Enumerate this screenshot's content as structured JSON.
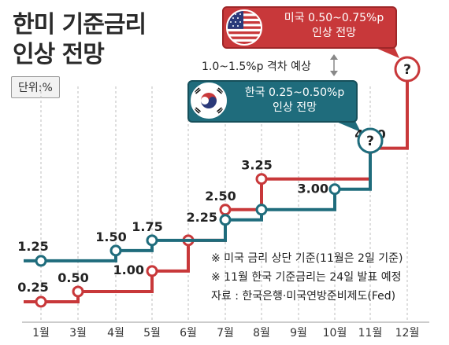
{
  "title_line1": "한미 기준금리",
  "title_line2": "인상 전망",
  "unit_label": "단위:%",
  "gap_note": "1.0~1.5%p 격차 예상",
  "us_callout": {
    "line1": "미국 0.50~0.75%p",
    "line2": "인상 전망"
  },
  "kr_callout": {
    "line1": "한국 0.25~0.50%p",
    "line2": "인상 전망"
  },
  "notes": [
    "※ 미국 금리 상단 기준(11월은 2일 기준)",
    "※ 11월 한국 기준금리는 24일 발표 예정",
    "자료 : 한국은행·미국연방준비제도(Fed)"
  ],
  "colors": {
    "us": "#c8383a",
    "kr": "#1f6c7c",
    "grid": "#bdbdbd"
  },
  "icons": {
    "us_flag": "us-flag-icon",
    "kr_flag": "kr-flag-icon"
  },
  "chart_data": {
    "type": "line",
    "step": true,
    "categories": [
      "1월",
      "3월",
      "4월",
      "5월",
      "6월",
      "7월",
      "8월",
      "9월",
      "10월",
      "11월",
      "12월"
    ],
    "series": [
      {
        "name": "미국",
        "color": "#c8383a",
        "points": [
          [
            0,
            0.25
          ],
          [
            1,
            0.5
          ],
          [
            3,
            1.0
          ],
          [
            4,
            1.75
          ],
          [
            5,
            2.5
          ],
          [
            6,
            3.25
          ],
          [
            9,
            4.0
          ],
          [
            10,
            null
          ]
        ],
        "labels": [
          [
            0,
            "0.25"
          ],
          [
            1,
            "0.50"
          ],
          [
            3,
            "1.00"
          ],
          [
            5,
            "2.50"
          ],
          [
            6,
            "3.25"
          ],
          [
            9,
            "4.00"
          ]
        ]
      },
      {
        "name": "한국",
        "color": "#1f6c7c",
        "points": [
          [
            0,
            1.25
          ],
          [
            2,
            1.5
          ],
          [
            3,
            1.75
          ],
          [
            5,
            2.25
          ],
          [
            6,
            2.5
          ],
          [
            8,
            3.0
          ],
          [
            9,
            null
          ]
        ],
        "labels": [
          [
            0,
            "1.25"
          ],
          [
            2,
            "1.50"
          ],
          [
            3,
            "1.75"
          ],
          [
            5,
            "2.25"
          ],
          [
            8,
            "3.00"
          ]
        ]
      }
    ],
    "unknown_label": "?"
  }
}
